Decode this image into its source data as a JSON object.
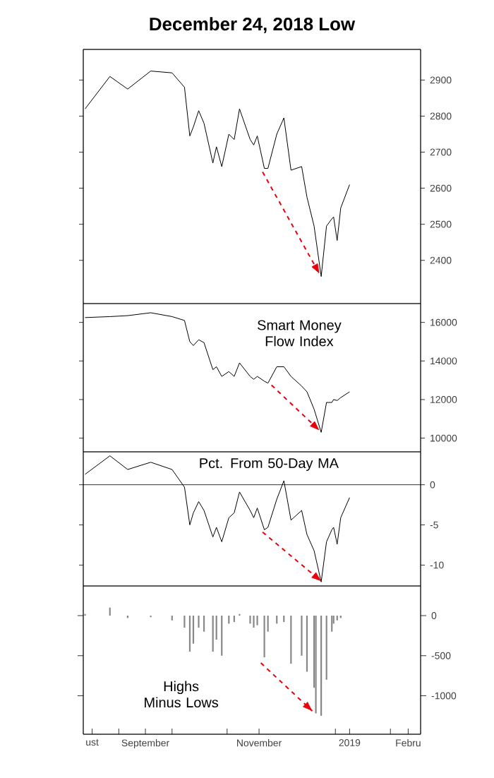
{
  "chart_data": [
    {
      "type": "line",
      "title": "December 24, 2018 Low",
      "xlim": [
        "2018-08-12",
        "2019-02-18"
      ],
      "ylim": [
        2280,
        2985
      ],
      "yticks": [
        2400,
        2500,
        2600,
        2700,
        2800,
        2900
      ],
      "tick_labels": "y",
      "x": [
        "2018-08-13",
        "2018-08-27",
        "2018-09-06",
        "2018-09-19",
        "2018-10-01",
        "2018-10-08",
        "2018-10-11",
        "2018-10-13",
        "2018-10-16",
        "2018-10-19",
        "2018-10-24",
        "2018-10-26",
        "2018-10-29",
        "2018-11-02",
        "2018-11-05",
        "2018-11-08",
        "2018-11-14",
        "2018-11-16",
        "2018-11-18",
        "2018-11-22",
        "2018-11-24",
        "2018-11-29",
        "2018-12-03",
        "2018-12-07",
        "2018-12-13",
        "2018-12-16",
        "2018-12-20",
        "2018-12-24",
        "2018-12-27",
        "2018-12-30",
        "2018-12-31",
        "2019-01-02",
        "2019-01-04",
        "2019-01-09"
      ],
      "series": [
        {
          "color": "#000000",
          "values": [
            2820,
            2910,
            2875,
            2925,
            2920,
            2880,
            2745,
            2770,
            2815,
            2780,
            2670,
            2715,
            2660,
            2750,
            2735,
            2820,
            2735,
            2720,
            2745,
            2655,
            2655,
            2750,
            2795,
            2650,
            2660,
            2575,
            2495,
            2355,
            2495,
            2515,
            2520,
            2455,
            2545,
            2610
          ]
        },
        {
          "type": "line",
          "x": [
            "2018-11-21",
            "2018-12-23"
          ],
          "values": [
            2645,
            2363
          ],
          "color": "#e8000b",
          "line_style": "dashed"
        }
      ]
    },
    {
      "type": "line",
      "annotations": [
        "Smart Money Flow Index"
      ],
      "xlim": [
        "2018-08-12",
        "2019-02-18"
      ],
      "ylim": [
        9290,
        16976
      ],
      "yticks": [
        10000,
        12000,
        14000,
        16000
      ],
      "tick_labels": "y",
      "x": [
        "2018-08-13",
        "2018-08-27",
        "2018-09-06",
        "2018-09-19",
        "2018-10-01",
        "2018-10-08",
        "2018-10-11",
        "2018-10-13",
        "2018-10-16",
        "2018-10-19",
        "2018-10-24",
        "2018-10-26",
        "2018-10-29",
        "2018-11-02",
        "2018-11-05",
        "2018-11-08",
        "2018-11-14",
        "2018-11-16",
        "2018-11-18",
        "2018-11-22",
        "2018-11-24",
        "2018-11-29",
        "2018-12-03",
        "2018-12-07",
        "2018-12-13",
        "2018-12-16",
        "2018-12-20",
        "2018-12-24",
        "2018-12-27",
        "2018-12-30",
        "2018-12-31",
        "2019-01-02",
        "2019-01-04",
        "2019-01-09"
      ],
      "series": [
        {
          "color": "#000000",
          "values": [
            16250,
            16300,
            16350,
            16500,
            16300,
            16100,
            15000,
            14800,
            15100,
            14950,
            13550,
            13700,
            13200,
            13450,
            13200,
            13900,
            13200,
            13050,
            13200,
            12950,
            12850,
            13700,
            13700,
            13200,
            12700,
            12400,
            11500,
            10300,
            11850,
            11850,
            12000,
            11950,
            12100,
            12400
          ]
        },
        {
          "type": "line",
          "x": [
            "2018-11-26",
            "2018-12-23"
          ],
          "values": [
            12750,
            10400
          ],
          "color": "#e8000b",
          "line_style": "dashed"
        }
      ]
    },
    {
      "type": "line",
      "annotations": [
        "Pct. From 50-Day MA"
      ],
      "xlim": [
        "2018-08-12",
        "2019-02-18"
      ],
      "ylim": [
        -12.6,
        4.1
      ],
      "yticks": [
        -10,
        -5,
        0
      ],
      "tick_labels": "y",
      "ref_lines": [
        {
          "axis": "y",
          "value": 0,
          "color": "#000000"
        }
      ],
      "x": [
        "2018-08-13",
        "2018-08-27",
        "2018-09-06",
        "2018-09-19",
        "2018-10-01",
        "2018-10-08",
        "2018-10-11",
        "2018-10-13",
        "2018-10-16",
        "2018-10-19",
        "2018-10-24",
        "2018-10-26",
        "2018-10-29",
        "2018-11-02",
        "2018-11-05",
        "2018-11-08",
        "2018-11-14",
        "2018-11-16",
        "2018-11-18",
        "2018-11-22",
        "2018-11-24",
        "2018-11-29",
        "2018-12-03",
        "2018-12-07",
        "2018-12-13",
        "2018-12-16",
        "2018-12-20",
        "2018-12-24",
        "2018-12-27",
        "2018-12-30",
        "2018-12-31",
        "2019-01-02",
        "2019-01-04",
        "2019-01-09"
      ],
      "series": [
        {
          "color": "#000000",
          "values": [
            1.3,
            3.6,
            1.9,
            2.8,
            1.9,
            -0.3,
            -5.0,
            -3.5,
            -2.1,
            -3.2,
            -6.5,
            -5.3,
            -7.1,
            -4.1,
            -3.5,
            -0.9,
            -3.2,
            -4.1,
            -2.9,
            -5.6,
            -5.3,
            -1.8,
            0.5,
            -4.4,
            -3.2,
            -6.2,
            -8.2,
            -12.1,
            -7.1,
            -5.6,
            -5.3,
            -7.4,
            -4.1,
            -1.6
          ]
        },
        {
          "type": "line",
          "x": [
            "2018-11-21",
            "2018-12-24"
          ],
          "values": [
            -5.9,
            -12.0
          ],
          "color": "#e8000b",
          "line_style": "dashed"
        }
      ]
    },
    {
      "type": "bar",
      "annotations": [
        "Highs Minus Lows"
      ],
      "xlim": [
        "2018-08-12",
        "2019-02-18"
      ],
      "ylim": [
        -1480,
        370
      ],
      "yticks": [
        -1000,
        -500,
        0
      ],
      "xticks": [
        {
          "value": "2018-08-17",
          "label": "ust"
        },
        {
          "value": "2018-09-01",
          "label": null
        },
        {
          "value": "2018-09-16",
          "label": "September"
        },
        {
          "value": "2018-10-01",
          "label": null
        },
        {
          "value": "2018-11-01",
          "label": null
        },
        {
          "value": "2018-11-19",
          "label": "November"
        },
        {
          "value": "2019-01-01",
          "label": null
        },
        {
          "value": "2019-01-09",
          "label": "2019"
        },
        {
          "value": "2019-02-01",
          "label": null
        },
        {
          "value": "2019-02-11",
          "label": "Febru"
        }
      ],
      "series": [
        {
          "color": "#888888",
          "x": [
            "2018-08-13",
            "2018-08-27",
            "2018-09-06",
            "2018-09-19",
            "2018-10-01",
            "2018-10-08",
            "2018-10-11",
            "2018-10-13",
            "2018-10-16",
            "2018-10-19",
            "2018-10-24",
            "2018-10-26",
            "2018-10-29",
            "2018-11-02",
            "2018-11-05",
            "2018-11-08",
            "2018-11-14",
            "2018-11-16",
            "2018-11-18",
            "2018-11-22",
            "2018-11-24",
            "2018-11-29",
            "2018-12-03",
            "2018-12-07",
            "2018-12-13",
            "2018-12-16",
            "2018-12-20",
            "2018-12-21",
            "2018-12-24",
            "2018-12-27",
            "2018-12-30",
            "2018-12-31",
            "2019-01-02",
            "2019-01-04",
            "2019-01-09"
          ],
          "values": [
            20,
            100,
            -30,
            -20,
            -60,
            -150,
            -450,
            -350,
            -150,
            -200,
            -450,
            -300,
            -500,
            -100,
            -80,
            20,
            -100,
            -150,
            -120,
            -520,
            -200,
            -100,
            -80,
            -600,
            -500,
            -700,
            -900,
            -1220,
            -1250,
            -800,
            -200,
            -100,
            -60,
            -30,
            0
          ]
        },
        {
          "type": "line",
          "x": [
            "2018-11-20",
            "2018-12-19"
          ],
          "values": [
            -590,
            -1190
          ],
          "color": "#e8000b",
          "line_style": "dashed"
        }
      ]
    }
  ]
}
